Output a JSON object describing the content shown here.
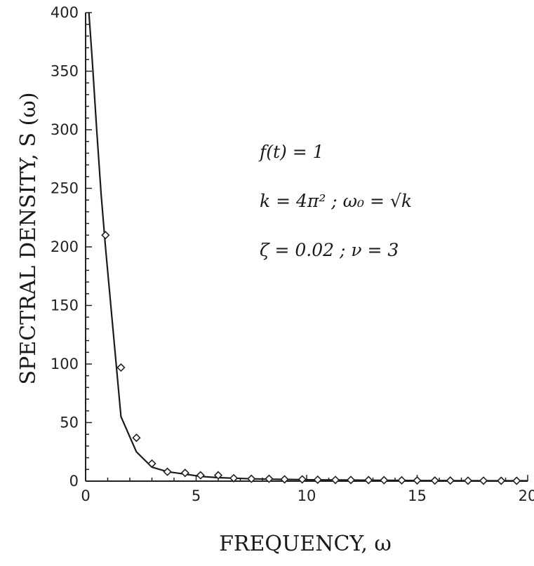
{
  "chart_data": {
    "type": "scatter",
    "title": "",
    "xlabel": "FREQUENCY, ω",
    "ylabel": "SPECTRAL DENSITY, S (ω)",
    "xlim": [
      0,
      20
    ],
    "ylim": [
      0,
      400
    ],
    "x_ticks": [
      "0",
      "5",
      "10",
      "15",
      "20"
    ],
    "y_ticks": [
      "0",
      "50",
      "100",
      "150",
      "200",
      "250",
      "300",
      "350",
      "400"
    ],
    "grid": false,
    "legend": "none",
    "annotations": [
      "f(t) = 1",
      "k = 4π² ; ω₀ = √k",
      "ζ = 0.02 ; ν = 3"
    ],
    "series": [
      {
        "kind": "line",
        "x": [
          0.15,
          0.3,
          0.5,
          0.7,
          0.9,
          1.6,
          2.3,
          3.0,
          3.7,
          4.5,
          5.2,
          6.0,
          6.7,
          7.5,
          8.3,
          9.0,
          9.8,
          10.5,
          11.3,
          12.0,
          12.8,
          13.5,
          14.3,
          15.0,
          15.8,
          16.5,
          17.3,
          18.0,
          18.8,
          19.5,
          20.0
        ],
        "y": [
          400,
          360,
          300,
          245,
          200,
          55,
          25,
          12,
          8,
          6,
          4,
          3,
          2.5,
          2,
          1.7,
          1.5,
          1.3,
          1.1,
          1,
          0.9,
          0.8,
          0.7,
          0.6,
          0.5,
          0.5,
          0.4,
          0.4,
          0.3,
          0.3,
          0.3,
          0.3
        ]
      },
      {
        "kind": "markers",
        "x": [
          0.9,
          1.6,
          2.3,
          3.0,
          3.7,
          4.5,
          5.2,
          6.0,
          6.7,
          7.5,
          8.3,
          9.0,
          9.8,
          10.5,
          11.3,
          12.0,
          12.8,
          13.5,
          14.3,
          15.0,
          15.8,
          16.5,
          17.3,
          18.0,
          18.8,
          19.5
        ],
        "y": [
          210,
          97,
          37,
          15,
          8,
          7,
          5,
          5,
          2.5,
          2,
          2,
          1.5,
          1.5,
          1.2,
          1,
          1,
          0.9,
          0.8,
          0.7,
          0.6,
          0.5,
          0.5,
          0.4,
          0.4,
          0.3,
          0.3
        ]
      }
    ]
  }
}
